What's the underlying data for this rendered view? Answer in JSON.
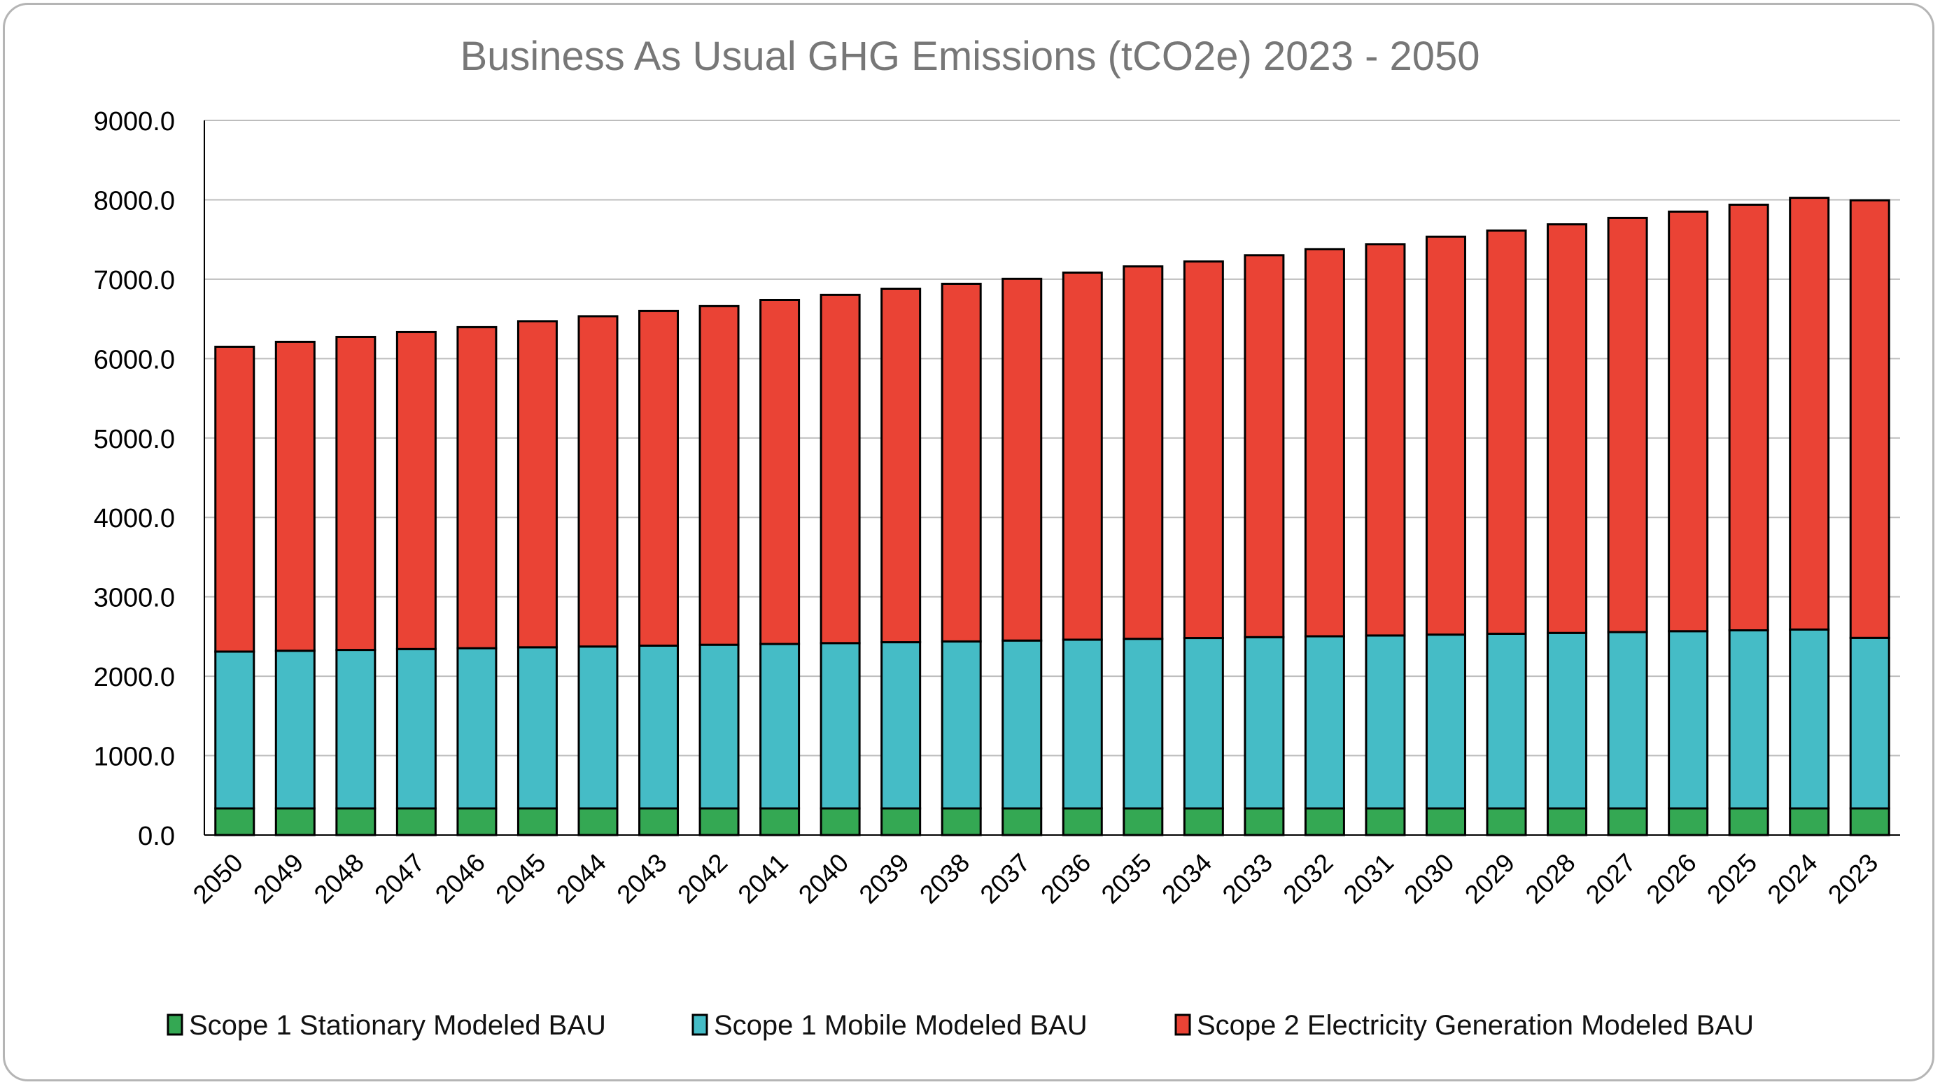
{
  "chart_data": {
    "type": "bar",
    "stacked": true,
    "title": "Business As Usual GHG Emissions (tCO2e) 2023 - 2050",
    "xlabel": "",
    "ylabel": "",
    "ylim": [
      0,
      9000
    ],
    "yticks": [
      "0.0",
      "1000.0",
      "2000.0",
      "3000.0",
      "4000.0",
      "5000.0",
      "6000.0",
      "7000.0",
      "8000.0",
      "9000.0"
    ],
    "grid": true,
    "legend_position": "bottom",
    "categories": [
      "2050",
      "2049",
      "2048",
      "2047",
      "2046",
      "2045",
      "2044",
      "2043",
      "2042",
      "2041",
      "2040",
      "2039",
      "2038",
      "2037",
      "2036",
      "2035",
      "2034",
      "2033",
      "2032",
      "2031",
      "2030",
      "2029",
      "2028",
      "2027",
      "2026",
      "2025",
      "2024",
      "2023"
    ],
    "series": [
      {
        "name": "Scope 1 Stationary Modeled BAU",
        "color": "#34a853",
        "values": [
          335,
          335,
          335,
          335,
          335,
          335,
          335,
          335,
          335,
          335,
          335,
          335,
          335,
          335,
          335,
          335,
          335,
          335,
          335,
          335,
          335,
          335,
          335,
          335,
          335,
          335,
          335,
          335
        ]
      },
      {
        "name": "Scope 1 Mobile Modeled BAU",
        "color": "#45bcc6",
        "values": [
          1975,
          1986,
          1996,
          2007,
          2018,
          2029,
          2039,
          2050,
          2061,
          2071,
          2082,
          2093,
          2103,
          2114,
          2125,
          2136,
          2146,
          2157,
          2168,
          2178,
          2189,
          2200,
          2210,
          2221,
          2232,
          2243,
          2253,
          2148
        ]
      },
      {
        "name": "Scope 2 Electricity Generation Modeled BAU",
        "color": "#ea4335",
        "values": [
          3839,
          3890,
          3941,
          3992,
          4043,
          4107,
          4159,
          4214,
          4265,
          4333,
          4385,
          4452,
          4504,
          4556,
          4623,
          4690,
          4742,
          4809,
          4876,
          4928,
          5011,
          5078,
          5146,
          5215,
          5284,
          5360,
          5437,
          5511
        ]
      }
    ]
  }
}
